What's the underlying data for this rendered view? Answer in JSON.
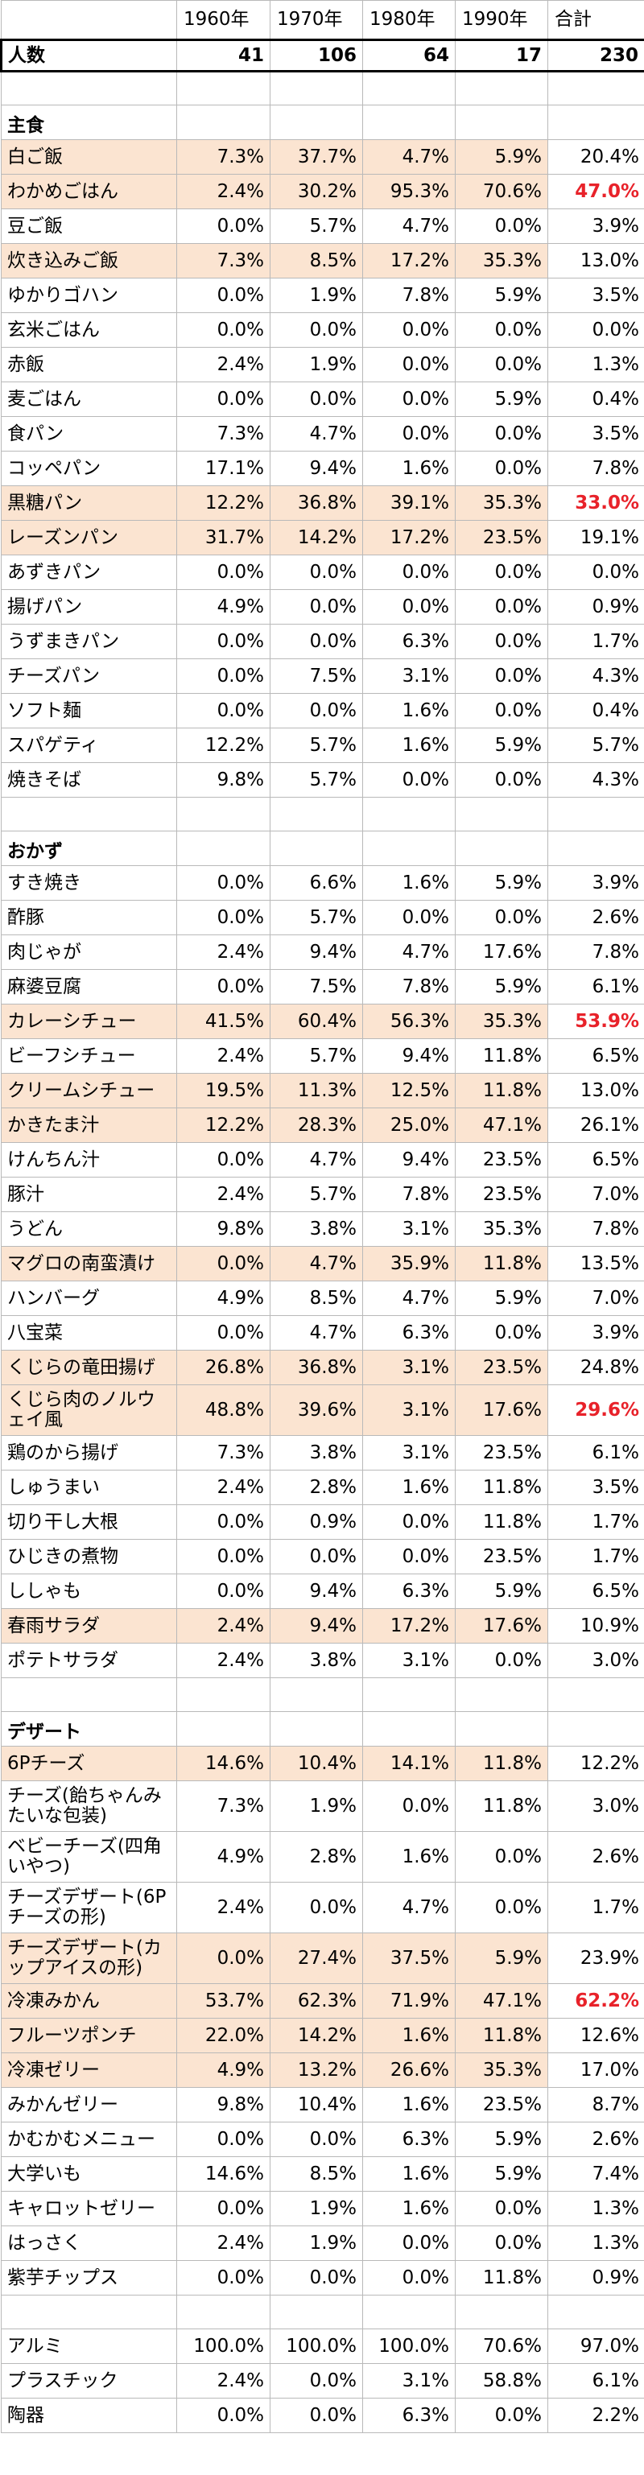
{
  "header": {
    "blank": "",
    "years": [
      "1960年",
      "1970年",
      "1980年",
      "1990年"
    ],
    "total": "合計"
  },
  "count_row": {
    "label": "人数",
    "values": [
      "41",
      "106",
      "64",
      "17",
      "230"
    ]
  },
  "highlight_color": "#fbe4d1",
  "emphasis_color": "#e8222a",
  "sections": [
    {
      "title": "主食",
      "rows": [
        {
          "label": "白ご飯",
          "values": [
            "7.3%",
            "37.7%",
            "4.7%",
            "5.9%",
            "20.4%"
          ],
          "highlight": true
        },
        {
          "label": "わかめごはん",
          "values": [
            "2.4%",
            "30.2%",
            "95.3%",
            "70.6%",
            "47.0%"
          ],
          "highlight": true,
          "emphasis": true
        },
        {
          "label": "豆ご飯",
          "values": [
            "0.0%",
            "5.7%",
            "4.7%",
            "0.0%",
            "3.9%"
          ]
        },
        {
          "label": "炊き込みご飯",
          "values": [
            "7.3%",
            "8.5%",
            "17.2%",
            "35.3%",
            "13.0%"
          ],
          "highlight": true
        },
        {
          "label": "ゆかりゴハン",
          "values": [
            "0.0%",
            "1.9%",
            "7.8%",
            "5.9%",
            "3.5%"
          ]
        },
        {
          "label": "玄米ごはん",
          "values": [
            "0.0%",
            "0.0%",
            "0.0%",
            "0.0%",
            "0.0%"
          ]
        },
        {
          "label": "赤飯",
          "values": [
            "2.4%",
            "1.9%",
            "0.0%",
            "0.0%",
            "1.3%"
          ]
        },
        {
          "label": "麦ごはん",
          "values": [
            "0.0%",
            "0.0%",
            "0.0%",
            "5.9%",
            "0.4%"
          ]
        },
        {
          "label": "食パン",
          "values": [
            "7.3%",
            "4.7%",
            "0.0%",
            "0.0%",
            "3.5%"
          ]
        },
        {
          "label": "コッペパン",
          "values": [
            "17.1%",
            "9.4%",
            "1.6%",
            "0.0%",
            "7.8%"
          ]
        },
        {
          "label": "黒糖パン",
          "values": [
            "12.2%",
            "36.8%",
            "39.1%",
            "35.3%",
            "33.0%"
          ],
          "highlight": true,
          "emphasis": true
        },
        {
          "label": "レーズンパン",
          "values": [
            "31.7%",
            "14.2%",
            "17.2%",
            "23.5%",
            "19.1%"
          ],
          "highlight": true
        },
        {
          "label": "あずきパン",
          "values": [
            "0.0%",
            "0.0%",
            "0.0%",
            "0.0%",
            "0.0%"
          ]
        },
        {
          "label": "揚げパン",
          "values": [
            "4.9%",
            "0.0%",
            "0.0%",
            "0.0%",
            "0.9%"
          ]
        },
        {
          "label": "うずまきパン",
          "values": [
            "0.0%",
            "0.0%",
            "6.3%",
            "0.0%",
            "1.7%"
          ]
        },
        {
          "label": "チーズパン",
          "values": [
            "0.0%",
            "7.5%",
            "3.1%",
            "0.0%",
            "4.3%"
          ]
        },
        {
          "label": "ソフト麺",
          "values": [
            "0.0%",
            "0.0%",
            "1.6%",
            "0.0%",
            "0.4%"
          ]
        },
        {
          "label": "スパゲティ",
          "values": [
            "12.2%",
            "5.7%",
            "1.6%",
            "5.9%",
            "5.7%"
          ]
        },
        {
          "label": "焼きそば",
          "values": [
            "9.8%",
            "5.7%",
            "0.0%",
            "0.0%",
            "4.3%"
          ]
        }
      ]
    },
    {
      "title": "おかず",
      "rows": [
        {
          "label": "すき焼き",
          "values": [
            "0.0%",
            "6.6%",
            "1.6%",
            "5.9%",
            "3.9%"
          ]
        },
        {
          "label": "酢豚",
          "values": [
            "0.0%",
            "5.7%",
            "0.0%",
            "0.0%",
            "2.6%"
          ]
        },
        {
          "label": "肉じゃが",
          "values": [
            "2.4%",
            "9.4%",
            "4.7%",
            "17.6%",
            "7.8%"
          ]
        },
        {
          "label": "麻婆豆腐",
          "values": [
            "0.0%",
            "7.5%",
            "7.8%",
            "5.9%",
            "6.1%"
          ]
        },
        {
          "label": "カレーシチュー",
          "values": [
            "41.5%",
            "60.4%",
            "56.3%",
            "35.3%",
            "53.9%"
          ],
          "highlight": true,
          "emphasis": true
        },
        {
          "label": "ビーフシチュー",
          "values": [
            "2.4%",
            "5.7%",
            "9.4%",
            "11.8%",
            "6.5%"
          ]
        },
        {
          "label": "クリームシチュー",
          "values": [
            "19.5%",
            "11.3%",
            "12.5%",
            "11.8%",
            "13.0%"
          ],
          "highlight": true
        },
        {
          "label": "かきたま汁",
          "values": [
            "12.2%",
            "28.3%",
            "25.0%",
            "47.1%",
            "26.1%"
          ],
          "highlight": true
        },
        {
          "label": "けんちん汁",
          "values": [
            "0.0%",
            "4.7%",
            "9.4%",
            "23.5%",
            "6.5%"
          ]
        },
        {
          "label": "豚汁",
          "values": [
            "2.4%",
            "5.7%",
            "7.8%",
            "23.5%",
            "7.0%"
          ]
        },
        {
          "label": "うどん",
          "values": [
            "9.8%",
            "3.8%",
            "3.1%",
            "35.3%",
            "7.8%"
          ]
        },
        {
          "label": "マグロの南蛮漬け",
          "values": [
            "0.0%",
            "4.7%",
            "35.9%",
            "11.8%",
            "13.5%"
          ],
          "highlight": true
        },
        {
          "label": "ハンバーグ",
          "values": [
            "4.9%",
            "8.5%",
            "4.7%",
            "5.9%",
            "7.0%"
          ]
        },
        {
          "label": "八宝菜",
          "values": [
            "0.0%",
            "4.7%",
            "6.3%",
            "0.0%",
            "3.9%"
          ]
        },
        {
          "label": "くじらの竜田揚げ",
          "values": [
            "26.8%",
            "36.8%",
            "3.1%",
            "23.5%",
            "24.8%"
          ],
          "highlight": true
        },
        {
          "label": "くじら肉のノルウェイ風",
          "values": [
            "48.8%",
            "39.6%",
            "3.1%",
            "17.6%",
            "29.6%"
          ],
          "highlight": true,
          "emphasis": true,
          "tall": true
        },
        {
          "label": "鶏のから揚げ",
          "values": [
            "7.3%",
            "3.8%",
            "3.1%",
            "23.5%",
            "6.1%"
          ]
        },
        {
          "label": "しゅうまい",
          "values": [
            "2.4%",
            "2.8%",
            "1.6%",
            "11.8%",
            "3.5%"
          ]
        },
        {
          "label": "切り干し大根",
          "values": [
            "0.0%",
            "0.9%",
            "0.0%",
            "11.8%",
            "1.7%"
          ]
        },
        {
          "label": "ひじきの煮物",
          "values": [
            "0.0%",
            "0.0%",
            "0.0%",
            "23.5%",
            "1.7%"
          ]
        },
        {
          "label": "ししゃも",
          "values": [
            "0.0%",
            "9.4%",
            "6.3%",
            "5.9%",
            "6.5%"
          ]
        },
        {
          "label": "春雨サラダ",
          "values": [
            "2.4%",
            "9.4%",
            "17.2%",
            "17.6%",
            "10.9%"
          ],
          "highlight": true
        },
        {
          "label": "ポテトサラダ",
          "values": [
            "2.4%",
            "3.8%",
            "3.1%",
            "0.0%",
            "3.0%"
          ]
        }
      ]
    },
    {
      "title": "デザート",
      "rows": [
        {
          "label": "6Pチーズ",
          "values": [
            "14.6%",
            "10.4%",
            "14.1%",
            "11.8%",
            "12.2%"
          ],
          "highlight": true
        },
        {
          "label": "チーズ(飴ちゃんみたいな包装)",
          "values": [
            "7.3%",
            "1.9%",
            "0.0%",
            "11.8%",
            "3.0%"
          ],
          "tall": true
        },
        {
          "label": "ベビーチーズ(四角いやつ)",
          "values": [
            "4.9%",
            "2.8%",
            "1.6%",
            "0.0%",
            "2.6%"
          ],
          "tall": true
        },
        {
          "label": "チーズデザート(6Pチーズの形)",
          "values": [
            "2.4%",
            "0.0%",
            "4.7%",
            "0.0%",
            "1.7%"
          ],
          "tall": true
        },
        {
          "label": "チーズデザート(カップアイスの形)",
          "values": [
            "0.0%",
            "27.4%",
            "37.5%",
            "5.9%",
            "23.9%"
          ],
          "highlight": true,
          "tall": true
        },
        {
          "label": "冷凍みかん",
          "values": [
            "53.7%",
            "62.3%",
            "71.9%",
            "47.1%",
            "62.2%"
          ],
          "highlight": true,
          "emphasis": true
        },
        {
          "label": "フルーツポンチ",
          "values": [
            "22.0%",
            "14.2%",
            "1.6%",
            "11.8%",
            "12.6%"
          ],
          "highlight": true
        },
        {
          "label": "冷凍ゼリー",
          "values": [
            "4.9%",
            "13.2%",
            "26.6%",
            "35.3%",
            "17.0%"
          ],
          "highlight": true
        },
        {
          "label": "みかんゼリー",
          "values": [
            "9.8%",
            "10.4%",
            "1.6%",
            "23.5%",
            "8.7%"
          ]
        },
        {
          "label": "かむかむメニュー",
          "values": [
            "0.0%",
            "0.0%",
            "6.3%",
            "5.9%",
            "2.6%"
          ]
        },
        {
          "label": "大学いも",
          "values": [
            "14.6%",
            "8.5%",
            "1.6%",
            "5.9%",
            "7.4%"
          ]
        },
        {
          "label": "キャロットゼリー",
          "values": [
            "0.0%",
            "1.9%",
            "1.6%",
            "0.0%",
            "1.3%"
          ]
        },
        {
          "label": "はっさく",
          "values": [
            "2.4%",
            "1.9%",
            "0.0%",
            "0.0%",
            "1.3%"
          ]
        },
        {
          "label": "紫芋チップス",
          "values": [
            "0.0%",
            "0.0%",
            "0.0%",
            "11.8%",
            "0.9%"
          ]
        }
      ]
    },
    {
      "title": "",
      "rows": [
        {
          "label": "アルミ",
          "values": [
            "100.0%",
            "100.0%",
            "100.0%",
            "70.6%",
            "97.0%"
          ]
        },
        {
          "label": "プラスチック",
          "values": [
            "2.4%",
            "0.0%",
            "3.1%",
            "58.8%",
            "6.1%"
          ]
        },
        {
          "label": "陶器",
          "values": [
            "0.0%",
            "0.0%",
            "6.3%",
            "0.0%",
            "2.2%"
          ]
        }
      ]
    }
  ]
}
